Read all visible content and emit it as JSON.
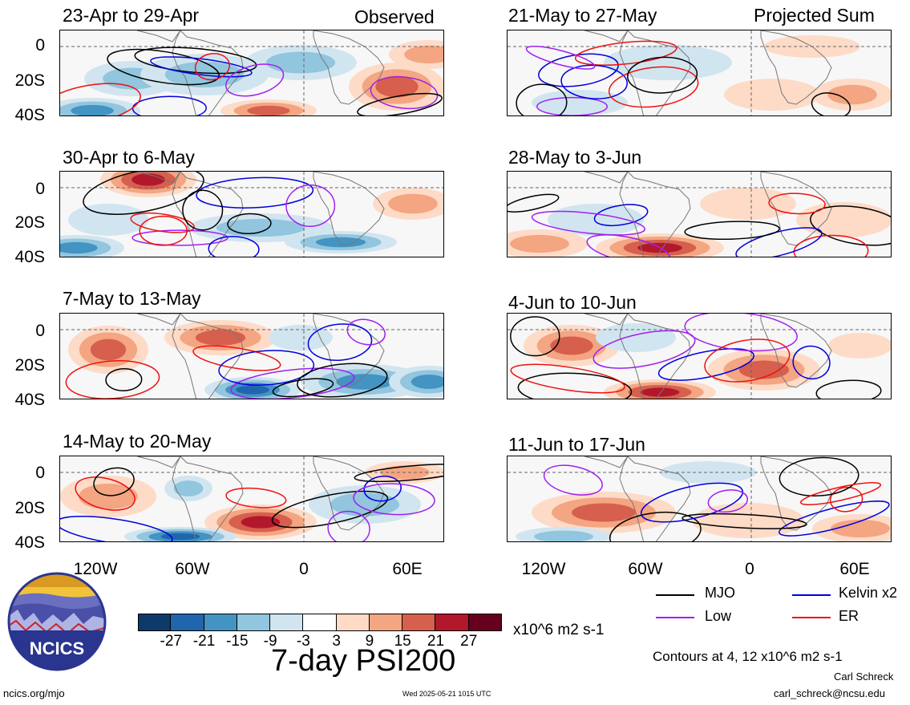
{
  "panels": [
    {
      "id": "p1",
      "col": 0,
      "title": "23-Apr to 29-Apr",
      "tag": "Observed"
    },
    {
      "id": "p2",
      "col": 0,
      "title": "30-Apr to 6-May",
      "tag": ""
    },
    {
      "id": "p3",
      "col": 0,
      "title": "7-May to 13-May",
      "tag": ""
    },
    {
      "id": "p4",
      "col": 0,
      "title": "14-May to 20-May",
      "tag": ""
    },
    {
      "id": "p5",
      "col": 1,
      "title": "21-May to 27-May",
      "tag": "Projected Sum"
    },
    {
      "id": "p6",
      "col": 1,
      "title": "28-May to 3-Jun",
      "tag": ""
    },
    {
      "id": "p7",
      "col": 1,
      "title": "4-Jun to 10-Jun",
      "tag": ""
    },
    {
      "id": "p8",
      "col": 1,
      "title": "11-Jun to 17-Jun",
      "tag": ""
    }
  ],
  "axes": {
    "y_ticks": [
      "0",
      "20S",
      "40S"
    ],
    "x_ticks": [
      "120W",
      "60W",
      "0",
      "60E"
    ]
  },
  "legend": {
    "items": [
      {
        "label": "MJO",
        "color": "#000000"
      },
      {
        "label": "Kelvin x2",
        "color": "#0000dd"
      },
      {
        "label": "Low",
        "color": "#a020f0"
      },
      {
        "label": "ER",
        "color": "#ee1111"
      }
    ],
    "contours_note": "Contours at 4, 12 x10^6 m2 s-1"
  },
  "colorbar": {
    "ticks": [
      "-27",
      "-21",
      "-15",
      "-9",
      "-3",
      "3",
      "9",
      "15",
      "21",
      "27"
    ],
    "colors": [
      "#0d3a6b",
      "#2166ac",
      "#4393c3",
      "#92c5de",
      "#d1e5f0",
      "#ffffff",
      "#fddbc7",
      "#f4a582",
      "#d6604d",
      "#b2182b",
      "#67001f"
    ],
    "units": "x10^6 m2 s-1",
    "title": "7-day PSI200"
  },
  "credits": {
    "site": "ncics.org/mjo",
    "timestamp": "Wed 2025-05-21 1015 UTC",
    "author": "Carl Schreck",
    "email": "carl_schreck@ncsu.edu",
    "logo_text": "NCICS"
  },
  "chart_data": {
    "type": "heatmap",
    "title": "7-day PSI200",
    "units": "x10^6 m2 s-1",
    "x_range": [
      "140W",
      "80E"
    ],
    "y_range": [
      "10N",
      "40S"
    ],
    "levels": [
      -27,
      -21,
      -15,
      -9,
      -3,
      3,
      9,
      15,
      21,
      27
    ],
    "contour_levels": [
      4,
      12
    ],
    "sections": [
      "Observed",
      "Projected Sum"
    ],
    "panel_titles": [
      "23-Apr to 29-Apr",
      "30-Apr to 6-May",
      "7-May to 13-May",
      "14-May to 20-May",
      "21-May to 27-May",
      "28-May to 3-Jun",
      "4-Jun to 10-Jun",
      "11-Jun to 17-Jun"
    ],
    "series": [
      {
        "name": "MJO"
      },
      {
        "name": "Kelvin x2"
      },
      {
        "name": "Low"
      },
      {
        "name": "ER"
      }
    ]
  }
}
